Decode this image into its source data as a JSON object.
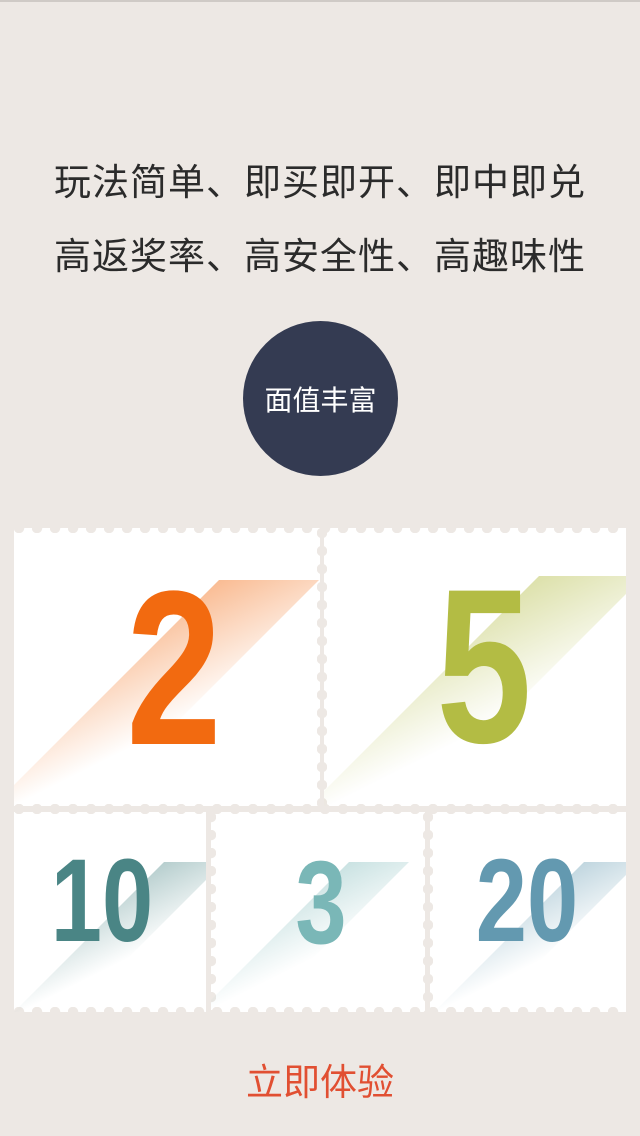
{
  "intro": {
    "line1": "玩法简单、即买即开、即中即兑",
    "line2": "高返奖率、高安全性、高趣味性"
  },
  "badge": {
    "label": "面值丰富"
  },
  "denominations": [
    {
      "value": "2",
      "color": "#f26a10"
    },
    {
      "value": "5",
      "color": "#b3bc44"
    },
    {
      "value": "10",
      "color": "#4a8585"
    },
    {
      "value": "3",
      "color": "#7ab7b7"
    },
    {
      "value": "20",
      "color": "#6399b0"
    }
  ],
  "cta": {
    "label": "立即体验"
  }
}
